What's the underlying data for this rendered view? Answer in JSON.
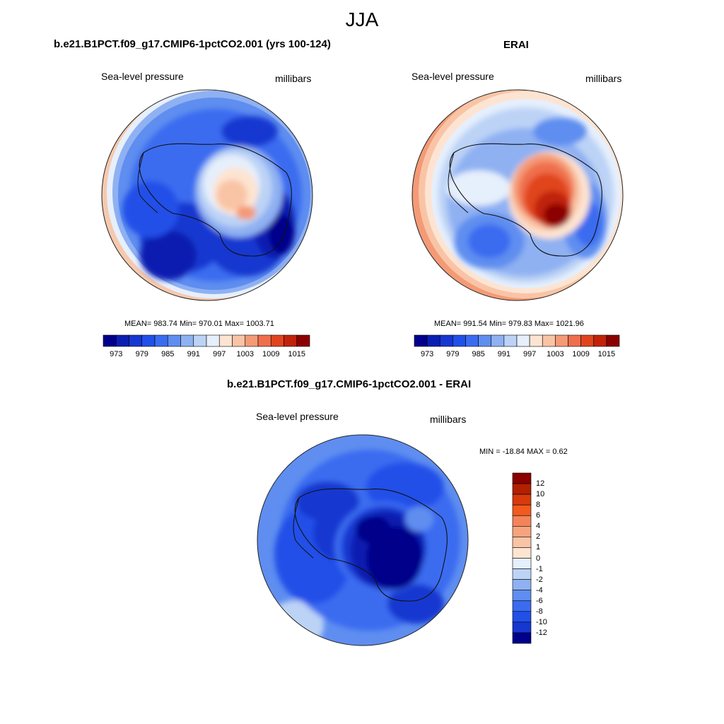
{
  "figure": {
    "title": "JJA"
  },
  "chart_data": [
    {
      "type": "heatmap",
      "title": "b.e21.B1PCT.f09_g17.CMIP6-1pctCO2.001 (yrs 100-124)",
      "left_label": "Sea-level pressure",
      "right_label": "millibars",
      "stats_text": "MEAN= 983.74  Min= 970.01  Max= 1003.71",
      "mean": 983.74,
      "min": 970.01,
      "max": 1003.71,
      "colorbar": {
        "orientation": "horizontal",
        "levels": [
          970,
          973,
          976,
          979,
          982,
          985,
          988,
          991,
          994,
          997,
          1000,
          1003,
          1006,
          1009,
          1012,
          1015
        ],
        "tick_labels": [
          "973",
          "979",
          "985",
          "991",
          "997",
          "1003",
          "1009",
          "1015"
        ],
        "colors": [
          "#00008b",
          "#0a1fb0",
          "#1637d0",
          "#2150e8",
          "#3a6cf0",
          "#5f8ef0",
          "#8fb1f2",
          "#bcd3f6",
          "#e6effc",
          "#fde4d2",
          "#f9c4a6",
          "#f49a76",
          "#ef6e4b",
          "#e0441f",
          "#c0230a",
          "#8b0000"
        ]
      }
    },
    {
      "type": "heatmap",
      "title": "ERAI",
      "left_label": "Sea-level pressure",
      "right_label": "millibars",
      "stats_text": "MEAN= 991.54  Min= 979.83  Max= 1021.96",
      "mean": 991.54,
      "min": 979.83,
      "max": 1021.96,
      "colorbar": {
        "orientation": "horizontal",
        "levels": [
          970,
          973,
          976,
          979,
          982,
          985,
          988,
          991,
          994,
          997,
          1000,
          1003,
          1006,
          1009,
          1012,
          1015
        ],
        "tick_labels": [
          "973",
          "979",
          "985",
          "991",
          "997",
          "1003",
          "1009",
          "1015"
        ],
        "colors": [
          "#00008b",
          "#0a1fb0",
          "#1637d0",
          "#2150e8",
          "#3a6cf0",
          "#5f8ef0",
          "#8fb1f2",
          "#bcd3f6",
          "#e6effc",
          "#fde4d2",
          "#f9c4a6",
          "#f49a76",
          "#ef6e4b",
          "#e0441f",
          "#c0230a",
          "#8b0000"
        ]
      }
    },
    {
      "type": "heatmap",
      "title": "b.e21.B1PCT.f09_g17.CMIP6-1pctCO2.001 - ERAI",
      "left_label": "Sea-level pressure",
      "right_label": "millibars",
      "stats_text": "MIN = -18.84 MAX =   0.62",
      "min": -18.84,
      "max": 0.62,
      "colorbar": {
        "orientation": "vertical",
        "tick_labels": [
          "12",
          "10",
          "8",
          "6",
          "4",
          "2",
          "1",
          "0",
          "-1",
          "-2",
          "-4",
          "-6",
          "-8",
          "-10",
          "-12"
        ],
        "colors": [
          "#8b0000",
          "#b22000",
          "#d83a0c",
          "#f25a1e",
          "#f4835a",
          "#f7a47e",
          "#f9c4a6",
          "#fde4d2",
          "#e6effc",
          "#bcd3f6",
          "#8fb1f2",
          "#5f8ef0",
          "#3a6cf0",
          "#2150e8",
          "#1637d0",
          "#00008b"
        ]
      }
    }
  ]
}
